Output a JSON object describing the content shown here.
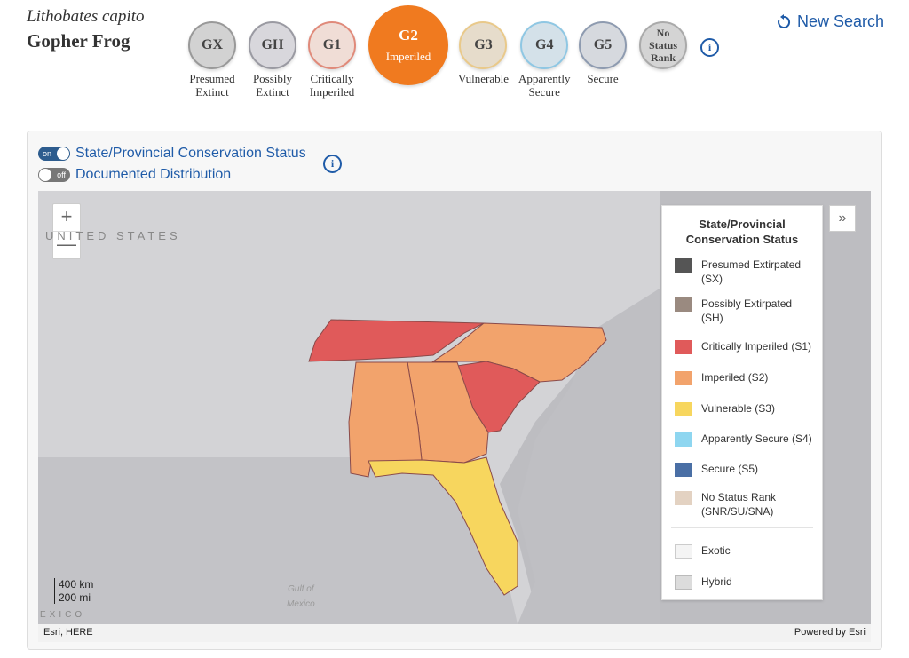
{
  "species": {
    "scientific_name": "Lithobates capito",
    "common_name": "Gopher Frog"
  },
  "ranks": [
    {
      "code": "GX",
      "label_line1": "Presumed",
      "label_line2": "Extinct"
    },
    {
      "code": "GH",
      "label_line1": "Possibly",
      "label_line2": "Extinct"
    },
    {
      "code": "G1",
      "label_line1": "Critically",
      "label_line2": "Imperiled"
    },
    {
      "code": "G2",
      "label_line1": "Imperiled",
      "label_line2": ""
    },
    {
      "code": "G3",
      "label_line1": "Vulnerable",
      "label_line2": ""
    },
    {
      "code": "G4",
      "label_line1": "Apparently",
      "label_line2": "Secure"
    },
    {
      "code": "G5",
      "label_line1": "Secure",
      "label_line2": ""
    },
    {
      "code": "No Status Rank",
      "line1": "No",
      "line2": "Status",
      "line3": "Rank"
    }
  ],
  "active_rank": "G2",
  "new_search_label": "New Search",
  "toggles": {
    "conservation": {
      "state": "on",
      "label": "State/Provincial Conservation Status"
    },
    "distribution": {
      "state": "off",
      "label": "Documented Distribution"
    }
  },
  "map": {
    "zoom_in": "+",
    "zoom_out": "—",
    "country_label": "UNITED STATES",
    "gulf_label_line1": "Gulf of",
    "gulf_label_line2": "Mexico",
    "scale_km": "400 km",
    "scale_mi": "200 mi",
    "attribution": "Esri, HERE",
    "powered_by": "Powered by Esri",
    "faint_label": "EXICO",
    "state_colors": {
      "tennessee": "#e05a5a",
      "north_carolina": "#f2a36c",
      "south_carolina": "#e05a5a",
      "georgia": "#f2a36c",
      "alabama": "#f2a36c",
      "florida": "#f7d65e"
    }
  },
  "legend": {
    "title_line1": "State/Provincial",
    "title_line2": "Conservation Status",
    "items": [
      {
        "label_line1": "Presumed Extirpated",
        "label_line2": "(SX)",
        "color": "#555555"
      },
      {
        "label_line1": "Possibly Extirpated",
        "label_line2": "(SH)",
        "color": "#9a8a80"
      },
      {
        "label_line1": "Critically Imperiled (S1)",
        "label_line2": "",
        "color": "#e05a5a"
      },
      {
        "label_line1": "Imperiled (S2)",
        "label_line2": "",
        "color": "#f2a36c"
      },
      {
        "label_line1": "Vulnerable (S3)",
        "label_line2": "",
        "color": "#f7d65e"
      },
      {
        "label_line1": "Apparently Secure (S4)",
        "label_line2": "",
        "color": "#8ed6f0"
      },
      {
        "label_line1": "Secure (S5)",
        "label_line2": "",
        "color": "#4a6fa5"
      },
      {
        "label_line1": "No Status Rank",
        "label_line2": "(SNR/SU/SNA)",
        "color": "#e3d2c2"
      },
      {
        "label_line1": "Exotic",
        "label_line2": "",
        "color": "#f4f4f4"
      },
      {
        "label_line1": "Hybrid",
        "label_line2": "",
        "color": "#dcdcdc"
      }
    ]
  }
}
